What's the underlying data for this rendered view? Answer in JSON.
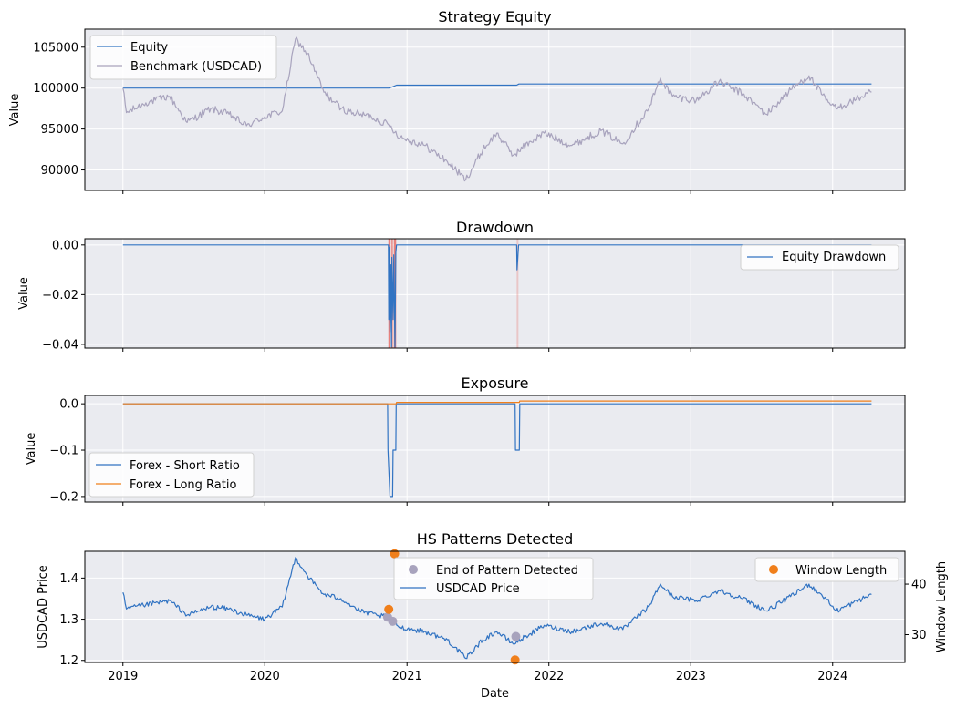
{
  "colors": {
    "equity": "#3173c2",
    "benchmark": "#a8a3bd",
    "short": "#3173c2",
    "long": "#f07f1b",
    "drawdown_fill": "#e8817c",
    "dot_end": "#a8a3bd",
    "dot_window": "#f07f1b",
    "panel_bg": "#eaebf0",
    "grid": "#ffffff"
  },
  "chart_data": [
    {
      "type": "line",
      "title": "Strategy Equity",
      "ylabel": "Value",
      "xlim": [
        "2018-09-25",
        "2024-07-05"
      ],
      "ylim": [
        87500,
        107200
      ],
      "yticks": [
        90000,
        95000,
        100000,
        105000
      ],
      "yticklabels": [
        "90000",
        "95000",
        "100000",
        "105000"
      ],
      "legend": "upper-left",
      "grid": true,
      "series": [
        {
          "name": "Equity",
          "color_key": "equity",
          "points": [
            [
              "2019-01-01",
              100000
            ],
            [
              "2020-11-15",
              100000
            ],
            [
              "2020-11-25",
              100150
            ],
            [
              "2020-12-05",
              100350
            ],
            [
              "2021-10-10",
              100350
            ],
            [
              "2021-10-16",
              100500
            ],
            [
              "2024-04-10",
              100500
            ]
          ]
        },
        {
          "name": "Benchmark (USDCAD)",
          "color_key": "benchmark",
          "noise": 450,
          "points": [
            [
              "2019-01-01",
              100000
            ],
            [
              "2019-01-10",
              97000
            ],
            [
              "2019-03-01",
              98200
            ],
            [
              "2019-05-01",
              99000
            ],
            [
              "2019-06-15",
              95800
            ],
            [
              "2019-08-15",
              97500
            ],
            [
              "2019-10-01",
              96800
            ],
            [
              "2019-11-15",
              95400
            ],
            [
              "2020-01-01",
              96500
            ],
            [
              "2020-02-15",
              97200
            ],
            [
              "2020-03-20",
              106000
            ],
            [
              "2020-04-20",
              104200
            ],
            [
              "2020-06-01",
              99500
            ],
            [
              "2020-07-15",
              97500
            ],
            [
              "2020-08-15",
              97000
            ],
            [
              "2020-10-01",
              96500
            ],
            [
              "2020-11-15",
              95500
            ],
            [
              "2020-12-15",
              94000
            ],
            [
              "2021-02-15",
              93000
            ],
            [
              "2021-04-15",
              91000
            ],
            [
              "2021-06-01",
              88800
            ],
            [
              "2021-07-15",
              92500
            ],
            [
              "2021-08-20",
              94500
            ],
            [
              "2021-10-01",
              91800
            ],
            [
              "2021-11-15",
              93500
            ],
            [
              "2021-12-20",
              94500
            ],
            [
              "2022-03-01",
              93000
            ],
            [
              "2022-05-15",
              94800
            ],
            [
              "2022-07-10",
              93200
            ],
            [
              "2022-09-15",
              97500
            ],
            [
              "2022-10-15",
              101200
            ],
            [
              "2022-11-15",
              99000
            ],
            [
              "2023-01-15",
              98500
            ],
            [
              "2023-03-15",
              100800
            ],
            [
              "2023-05-15",
              99300
            ],
            [
              "2023-07-15",
              96800
            ],
            [
              "2023-09-15",
              99800
            ],
            [
              "2023-11-01",
              101500
            ],
            [
              "2023-12-15",
              98500
            ],
            [
              "2024-01-10",
              97500
            ],
            [
              "2024-04-10",
              99500
            ]
          ]
        }
      ]
    },
    {
      "type": "line",
      "title": "Drawdown",
      "ylabel": "Value",
      "xlim": [
        "2018-09-25",
        "2024-07-05"
      ],
      "ylim": [
        -0.0415,
        0.0025
      ],
      "yticks": [
        -0.04,
        -0.02,
        0.0
      ],
      "yticklabels": [
        "−0.04",
        "−0.02",
        "0.00"
      ],
      "legend": "upper-right",
      "grid": true,
      "highlight_spans": [
        [
          [
            "2020-11-14",
            "2020-11-18"
          ],
          1.0
        ],
        [
          [
            "2020-11-21",
            "2020-11-24"
          ],
          0.8
        ],
        [
          [
            "2020-11-28",
            "2020-12-04"
          ],
          1.0
        ],
        [
          [
            "2021-10-10",
            "2021-10-13"
          ],
          0.35
        ]
      ],
      "series": [
        {
          "name": "Equity Drawdown",
          "color_key": "equity",
          "points": [
            [
              "2019-01-01",
              0
            ],
            [
              "2020-11-14",
              0
            ],
            [
              "2020-11-15",
              -0.03
            ],
            [
              "2020-11-16",
              -0.001
            ],
            [
              "2020-11-18",
              -0.035
            ],
            [
              "2020-11-20",
              -0.008
            ],
            [
              "2020-11-22",
              -0.041
            ],
            [
              "2020-11-23",
              -0.005
            ],
            [
              "2020-11-26",
              -0.03
            ],
            [
              "2020-11-28",
              -0.004
            ],
            [
              "2020-12-01",
              -0.041
            ],
            [
              "2020-12-03",
              -0.003
            ],
            [
              "2020-12-05",
              0
            ],
            [
              "2021-10-10",
              0
            ],
            [
              "2021-10-11",
              -0.01
            ],
            [
              "2021-10-15",
              0
            ],
            [
              "2024-04-10",
              0
            ]
          ]
        }
      ]
    },
    {
      "type": "line",
      "title": "Exposure",
      "ylabel": "Value",
      "xlim": [
        "2018-09-25",
        "2024-07-05"
      ],
      "ylim": [
        -0.212,
        0.018
      ],
      "yticks": [
        -0.2,
        -0.1,
        0.0
      ],
      "yticklabels": [
        "−0.2",
        "−0.1",
        "0.0"
      ],
      "legend": "lower-left",
      "grid": true,
      "series": [
        {
          "name": "Forex - Short Ratio",
          "color_key": "short",
          "points": [
            [
              "2019-01-01",
              0
            ],
            [
              "2020-11-12",
              0
            ],
            [
              "2020-11-13",
              -0.1
            ],
            [
              "2020-11-18",
              -0.2
            ],
            [
              "2020-11-25",
              -0.2
            ],
            [
              "2020-11-26",
              -0.1
            ],
            [
              "2020-12-03",
              -0.1
            ],
            [
              "2020-12-04",
              0
            ],
            [
              "2021-10-06",
              0
            ],
            [
              "2021-10-07",
              -0.1
            ],
            [
              "2021-10-17",
              -0.1
            ],
            [
              "2021-10-18",
              0
            ],
            [
              "2024-04-10",
              0
            ]
          ]
        },
        {
          "name": "Forex - Long Ratio",
          "color_key": "long",
          "points": [
            [
              "2019-01-01",
              0
            ],
            [
              "2020-12-04",
              0
            ],
            [
              "2020-12-05",
              0.003
            ],
            [
              "2021-10-17",
              0.003
            ],
            [
              "2021-10-18",
              0.006
            ],
            [
              "2024-04-10",
              0.006
            ]
          ]
        }
      ]
    },
    {
      "type": "line",
      "title": "HS Patterns Detected",
      "xlabel": "Date",
      "ylabel": "USDCAD Price",
      "y2label": "Window Length",
      "xlim": [
        "2018-09-25",
        "2024-07-05"
      ],
      "ylim": [
        1.195,
        1.465
      ],
      "y2lim": [
        24.5,
        46.5
      ],
      "yticks": [
        1.2,
        1.3,
        1.4
      ],
      "yticklabels": [
        "1.2",
        "1.3",
        "1.4"
      ],
      "y2ticks": [
        30,
        40
      ],
      "y2ticklabels": [
        "30",
        "40"
      ],
      "xticks": [
        "2019-01-01",
        "2020-01-01",
        "2021-01-01",
        "2022-01-01",
        "2023-01-01",
        "2024-01-01"
      ],
      "xticklabels": [
        "2019",
        "2020",
        "2021",
        "2022",
        "2023",
        "2024"
      ],
      "legend": [
        "upper-center",
        "upper-right"
      ],
      "grid": true,
      "series": [
        {
          "name": "USDCAD Price",
          "color_key": "equity",
          "noise": 0.006,
          "points": [
            [
              "2019-01-01",
              1.365
            ],
            [
              "2019-01-10",
              1.325
            ],
            [
              "2019-03-01",
              1.335
            ],
            [
              "2019-05-01",
              1.345
            ],
            [
              "2019-06-15",
              1.31
            ],
            [
              "2019-08-15",
              1.33
            ],
            [
              "2019-10-01",
              1.325
            ],
            [
              "2019-11-15",
              1.31
            ],
            [
              "2020-01-01",
              1.3
            ],
            [
              "2020-02-15",
              1.33
            ],
            [
              "2020-03-20",
              1.45
            ],
            [
              "2020-04-20",
              1.405
            ],
            [
              "2020-06-01",
              1.36
            ],
            [
              "2020-07-15",
              1.35
            ],
            [
              "2020-09-01",
              1.32
            ],
            [
              "2020-10-15",
              1.31
            ],
            [
              "2020-11-15",
              1.305
            ],
            [
              "2020-12-15",
              1.28
            ],
            [
              "2021-02-15",
              1.27
            ],
            [
              "2021-04-15",
              1.25
            ],
            [
              "2021-06-01",
              1.205
            ],
            [
              "2021-07-15",
              1.25
            ],
            [
              "2021-08-20",
              1.27
            ],
            [
              "2021-10-01",
              1.24
            ],
            [
              "2021-11-15",
              1.265
            ],
            [
              "2021-12-20",
              1.285
            ],
            [
              "2022-03-01",
              1.27
            ],
            [
              "2022-05-15",
              1.29
            ],
            [
              "2022-07-10",
              1.275
            ],
            [
              "2022-09-15",
              1.33
            ],
            [
              "2022-10-15",
              1.385
            ],
            [
              "2022-11-15",
              1.355
            ],
            [
              "2023-01-15",
              1.345
            ],
            [
              "2023-03-15",
              1.37
            ],
            [
              "2023-05-15",
              1.35
            ],
            [
              "2023-07-15",
              1.32
            ],
            [
              "2023-09-15",
              1.355
            ],
            [
              "2023-11-01",
              1.385
            ],
            [
              "2023-12-15",
              1.35
            ],
            [
              "2024-01-10",
              1.32
            ],
            [
              "2024-04-10",
              1.36
            ]
          ]
        },
        {
          "name": "End of Pattern Detected",
          "type": "scatter",
          "color_key": "dot_end",
          "axis": "left",
          "points": [
            [
              "2020-11-12",
              1.305
            ],
            [
              "2020-11-25",
              1.295
            ],
            [
              "2021-10-08",
              1.258
            ]
          ]
        },
        {
          "name": "Window Length",
          "type": "scatter",
          "color_key": "dot_window",
          "axis": "right",
          "points": [
            [
              "2020-11-15",
              35
            ],
            [
              "2020-11-30",
              46
            ],
            [
              "2021-10-06",
              25
            ]
          ]
        }
      ]
    }
  ]
}
